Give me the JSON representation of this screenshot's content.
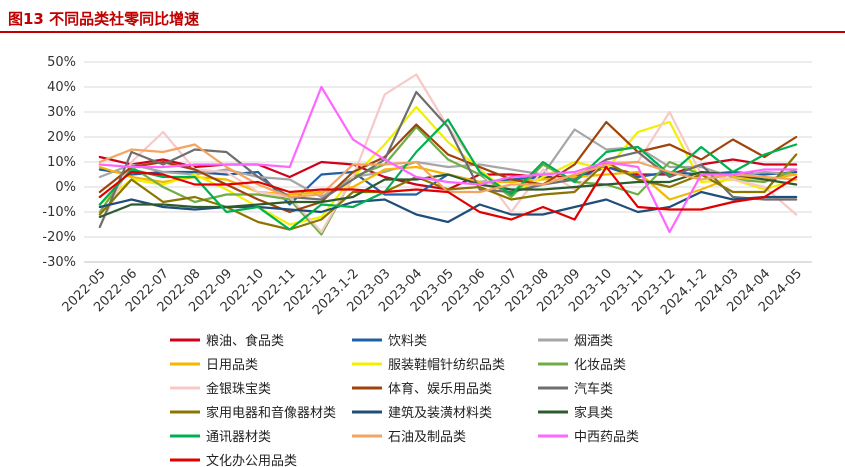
{
  "header": {
    "title": "图13 不同品类社零同比增速"
  },
  "chart_data": {
    "type": "line",
    "title": "图13 不同品类社零同比增速",
    "xlabel": "",
    "ylabel": "",
    "ylim": [
      -30,
      50
    ],
    "yticks": [
      -30,
      -20,
      -10,
      0,
      10,
      20,
      30,
      40,
      50
    ],
    "ytick_labels": [
      "-30%",
      "-20%",
      "-10%",
      "0%",
      "10%",
      "20%",
      "30%",
      "40%",
      "50%"
    ],
    "grid": true,
    "legend_position": "bottom",
    "categories": [
      "2022-05",
      "2022-06",
      "2022-07",
      "2022-08",
      "2022-09",
      "2022-10",
      "2022-11",
      "2022-12",
      "2023.1-2",
      "2023-03",
      "2023-04",
      "2023-05",
      "2023-06",
      "2023-07",
      "2023-08",
      "2023-09",
      "2023-10",
      "2023-11",
      "2023-12",
      "2024.1-2",
      "2024-03",
      "2024-04",
      "2024-05"
    ],
    "series": [
      {
        "name": "粮油、食品类",
        "color": "#d0021b",
        "values": [
          12,
          9,
          11,
          8,
          9,
          9,
          4,
          10,
          9,
          4,
          1,
          -1,
          5,
          5,
          4,
          4,
          8,
          5,
          5,
          9,
          11,
          9,
          9
        ]
      },
      {
        "name": "饮料类",
        "color": "#1f5fa8",
        "values": [
          7,
          5,
          6,
          6,
          5,
          6,
          -7,
          5,
          6,
          -3,
          -3,
          5,
          2,
          3,
          4,
          3,
          8,
          4,
          6,
          5,
          6,
          5,
          6
        ]
      },
      {
        "name": "烟酒类",
        "color": "#a6a6a6",
        "values": [
          4,
          9,
          6,
          5,
          7,
          4,
          3,
          -4,
          4,
          6,
          10,
          8,
          9,
          7,
          5,
          23,
          15,
          16,
          8,
          8,
          4,
          6,
          5
        ]
      },
      {
        "name": "日用品类",
        "color": "#f5b800",
        "values": [
          8,
          4,
          2,
          4,
          3,
          -2,
          -3,
          -2,
          0,
          7,
          8,
          5,
          2,
          2,
          3,
          4,
          5,
          6,
          -5,
          -1,
          4,
          3,
          5
        ]
      },
      {
        "name": "服装鞋帽针纺织品类",
        "color": "#f0f000",
        "values": [
          -7,
          3,
          1,
          5,
          -1,
          -8,
          -15,
          -12,
          4,
          17,
          32,
          18,
          7,
          -3,
          4,
          10,
          7,
          22,
          26,
          2,
          3,
          -1,
          3
        ]
      },
      {
        "name": "化妆品类",
        "color": "#70ad47",
        "values": [
          -10,
          8,
          0,
          -6,
          -3,
          -3,
          -5,
          -19,
          4,
          9,
          24,
          11,
          5,
          -4,
          9,
          2,
          1,
          -3,
          10,
          5,
          3,
          2,
          7
        ]
      },
      {
        "name": "金银珠宝类",
        "color": "#f8c8c8",
        "values": [
          -16,
          10,
          22,
          7,
          6,
          -2,
          -4,
          -18,
          4,
          37,
          45,
          24,
          7,
          -10,
          7,
          -1,
          10,
          10,
          30,
          5,
          3,
          0,
          -11
        ]
      },
      {
        "name": "体育、娱乐用品类",
        "color": "#a0430a",
        "values": [
          -2,
          8,
          10,
          7,
          1,
          -5,
          -10,
          -6,
          6,
          12,
          25,
          13,
          8,
          3,
          1,
          9,
          26,
          14,
          17,
          11,
          19,
          12,
          20
        ]
      },
      {
        "name": "汽车类",
        "color": "#6e6e6e",
        "values": [
          -16,
          14,
          9,
          15,
          14,
          4,
          -4,
          -5,
          3,
          11,
          38,
          24,
          -1,
          -2,
          1,
          3,
          11,
          14,
          4,
          9,
          -4,
          -5,
          -5
        ]
      },
      {
        "name": "家用电器和音像器材类",
        "color": "#8b7500",
        "values": [
          -11,
          3,
          -6,
          -4,
          -8,
          -14,
          -17,
          -13,
          -2,
          -2,
          4,
          -1,
          0,
          -5,
          -3,
          -2,
          10,
          3,
          0,
          5,
          -2,
          -2,
          13
        ]
      },
      {
        "name": "建筑及装潢材料类",
        "color": "#1f4e79",
        "values": [
          -8,
          -5,
          -8,
          -9,
          -8,
          -8,
          -9,
          -10,
          -6,
          -5,
          -11,
          -14,
          -7,
          -11,
          -11,
          -8,
          -5,
          -10,
          -8,
          -2,
          -5,
          -4,
          -4
        ]
      },
      {
        "name": "家具类",
        "color": "#2e5b2e",
        "values": [
          -12,
          -7,
          -7,
          -8,
          -8,
          -7,
          -6,
          -6,
          -4,
          3,
          3,
          5,
          1,
          -1,
          -1,
          0,
          1,
          2,
          2,
          6,
          5,
          3,
          1
        ]
      },
      {
        "name": "通讯器材类",
        "color": "#00b050",
        "values": [
          -7,
          7,
          4,
          4,
          -10,
          -8,
          -17,
          -7,
          -8,
          -2,
          14,
          27,
          6,
          -3,
          10,
          2,
          14,
          16,
          5,
          16,
          6,
          13,
          17
        ]
      },
      {
        "name": "石油及制品类",
        "color": "#f4a460",
        "values": [
          10,
          15,
          14,
          17,
          8,
          1,
          -4,
          -3,
          9,
          9,
          10,
          -2,
          -2,
          1,
          1,
          5,
          9,
          10,
          6,
          3,
          5,
          4,
          3
        ]
      },
      {
        "name": "中西药品类",
        "color": "#ff66ff",
        "values": [
          9,
          8,
          8,
          9,
          9,
          9,
          8,
          40,
          19,
          11,
          4,
          2,
          1,
          4,
          5,
          6,
          10,
          8,
          -18,
          5,
          5,
          7,
          7
        ]
      },
      {
        "name": "文化办公用品类",
        "color": "#e00000",
        "values": [
          -4,
          6,
          5,
          1,
          1,
          2,
          -2,
          -1,
          -1,
          -2,
          -1,
          -2,
          -10,
          -13,
          -8,
          -13,
          8,
          -8,
          -9,
          -9,
          -6,
          -4,
          4
        ]
      }
    ]
  }
}
